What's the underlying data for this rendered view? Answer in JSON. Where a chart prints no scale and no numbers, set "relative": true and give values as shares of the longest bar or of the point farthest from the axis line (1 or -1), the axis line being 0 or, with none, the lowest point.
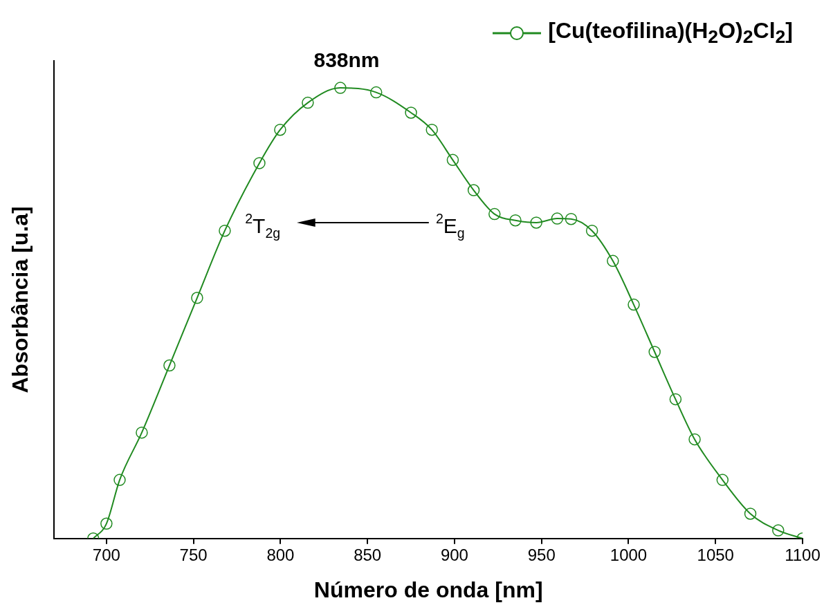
{
  "chart_data": {
    "type": "line",
    "relative": true,
    "xlabel": "Número de onda [nm]",
    "ylabel": "Absorbância [u.a]",
    "x": [
      692.4,
      700,
      707.6,
      720.3,
      736.2,
      752.1,
      768.0,
      787.9,
      799.8,
      815.7,
      834.4,
      855,
      875,
      887,
      899,
      911,
      923,
      935,
      947,
      959,
      967,
      979,
      991,
      1003,
      1015,
      1027,
      1038,
      1054,
      1070,
      1086,
      1100
    ],
    "series": [
      {
        "name": "[Cu(teofilina)(H$_{2}$O)$_{2}$Cl$_{2}$]",
        "color": "#208a20",
        "values": [
          0,
          0.033,
          0.13,
          0.235,
          0.384,
          0.534,
          0.683,
          0.833,
          0.907,
          0.967,
          1,
          0.99,
          0.945,
          0.907,
          0.84,
          0.773,
          0.72,
          0.706,
          0.701,
          0.71,
          0.709,
          0.683,
          0.616,
          0.519,
          0.414,
          0.309,
          0.22,
          0.13,
          0.055,
          0.018,
          0
        ]
      }
    ],
    "xlim": [
      670,
      1100
    ],
    "xticks": [
      700,
      750,
      800,
      850,
      900,
      950,
      1000,
      1050,
      1100
    ],
    "marker": "circle",
    "legend": "top right",
    "grid": false,
    "annotations": [
      {
        "text": "838nm",
        "x": 838,
        "y": 1
      },
      "$^{2}$T$_{2g}$",
      "$^{2}$E$_{g}$"
    ]
  }
}
